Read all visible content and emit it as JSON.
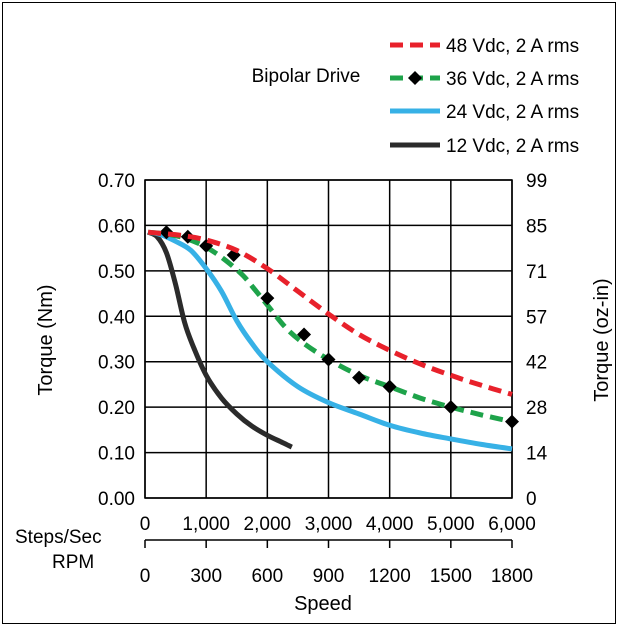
{
  "chart_data": {
    "type": "line",
    "title": "Bipolar Drive",
    "xlabel": "Speed",
    "ylabel": "Torque (Nm)",
    "y2label": "Torque (oz-in)",
    "xlim": [
      0,
      6000
    ],
    "ylim": [
      0,
      0.7
    ],
    "grid": true,
    "legend_position": "top-right",
    "x_axis_rows": [
      {
        "label": "Steps/Sec",
        "ticks": [
          {
            "value": 0,
            "label": "0"
          },
          {
            "value": 1000,
            "label": "1,000"
          },
          {
            "value": 2000,
            "label": "2,000"
          },
          {
            "value": 3000,
            "label": "3,000"
          },
          {
            "value": 4000,
            "label": "4,000"
          },
          {
            "value": 5000,
            "label": "5,000"
          },
          {
            "value": 6000,
            "label": "6,000"
          }
        ]
      },
      {
        "label": "RPM",
        "ticks": [
          {
            "value": 0,
            "label": "0"
          },
          {
            "value": 1000,
            "label": "300"
          },
          {
            "value": 2000,
            "label": "600"
          },
          {
            "value": 3000,
            "label": "900"
          },
          {
            "value": 4000,
            "label": "1200"
          },
          {
            "value": 5000,
            "label": "1500"
          },
          {
            "value": 6000,
            "label": "1800"
          }
        ]
      }
    ],
    "y_ticks": [
      {
        "value": 0.0,
        "label": "0.00"
      },
      {
        "value": 0.1,
        "label": "0.10"
      },
      {
        "value": 0.2,
        "label": "0.20"
      },
      {
        "value": 0.3,
        "label": "0.30"
      },
      {
        "value": 0.4,
        "label": "0.40"
      },
      {
        "value": 0.5,
        "label": "0.50"
      },
      {
        "value": 0.6,
        "label": "0.60"
      },
      {
        "value": 0.7,
        "label": "0.70"
      }
    ],
    "y2_ticks": [
      {
        "value": 0.0,
        "label": "0"
      },
      {
        "value": 0.1,
        "label": "14"
      },
      {
        "value": 0.2,
        "label": "28"
      },
      {
        "value": 0.3,
        "label": "42"
      },
      {
        "value": 0.4,
        "label": "57"
      },
      {
        "value": 0.5,
        "label": "71"
      },
      {
        "value": 0.6,
        "label": "85"
      },
      {
        "value": 0.7,
        "label": "99"
      }
    ],
    "series": [
      {
        "name": "48 Vdc, 2 A rms",
        "color": "#e8212b",
        "style": "dashed",
        "marker": "none",
        "x": [
          50,
          300,
          600,
          1000,
          1500,
          2000,
          2500,
          3000,
          3500,
          4000,
          4500,
          5000,
          5500,
          6000
        ],
        "y": [
          0.585,
          0.582,
          0.578,
          0.568,
          0.545,
          0.505,
          0.455,
          0.405,
          0.36,
          0.325,
          0.295,
          0.27,
          0.248,
          0.228
        ]
      },
      {
        "name": "36 Vdc, 2 A rms",
        "color": "#1ea34a",
        "style": "dashed",
        "marker": "diamond",
        "x": [
          50,
          400,
          700,
          1000,
          1300,
          1600,
          1800,
          2000,
          2300,
          2600,
          3000,
          3500,
          4000,
          4500,
          5000,
          5500,
          6000
        ],
        "y": [
          0.585,
          0.58,
          0.57,
          0.552,
          0.525,
          0.49,
          0.458,
          0.425,
          0.375,
          0.34,
          0.305,
          0.27,
          0.245,
          0.22,
          0.2,
          0.183,
          0.168
        ],
        "marker_x": [
          350,
          700,
          1000,
          1450,
          2000,
          2600,
          3000,
          3500,
          4000,
          5000,
          6000
        ],
        "marker_y": [
          0.585,
          0.575,
          0.555,
          0.535,
          0.44,
          0.36,
          0.305,
          0.265,
          0.245,
          0.2,
          0.168
        ]
      },
      {
        "name": "24 Vdc, 2 A rms",
        "color": "#37b1e6",
        "style": "solid",
        "marker": "none",
        "x": [
          50,
          250,
          500,
          750,
          1000,
          1250,
          1500,
          1750,
          2000,
          2500,
          3000,
          3500,
          4000,
          4500,
          5000,
          5500,
          6000
        ],
        "y": [
          0.585,
          0.58,
          0.565,
          0.545,
          0.505,
          0.455,
          0.39,
          0.34,
          0.3,
          0.245,
          0.21,
          0.185,
          0.16,
          0.143,
          0.13,
          0.118,
          0.108
        ]
      },
      {
        "name": "12 Vdc, 2 A rms",
        "color": "#2b2b2b",
        "style": "solid",
        "marker": "none",
        "x": [
          50,
          200,
          350,
          500,
          650,
          800,
          1000,
          1250,
          1500,
          1750,
          2000,
          2250,
          2400
        ],
        "y": [
          0.585,
          0.575,
          0.54,
          0.47,
          0.385,
          0.33,
          0.27,
          0.22,
          0.185,
          0.158,
          0.138,
          0.122,
          0.112
        ]
      }
    ]
  }
}
